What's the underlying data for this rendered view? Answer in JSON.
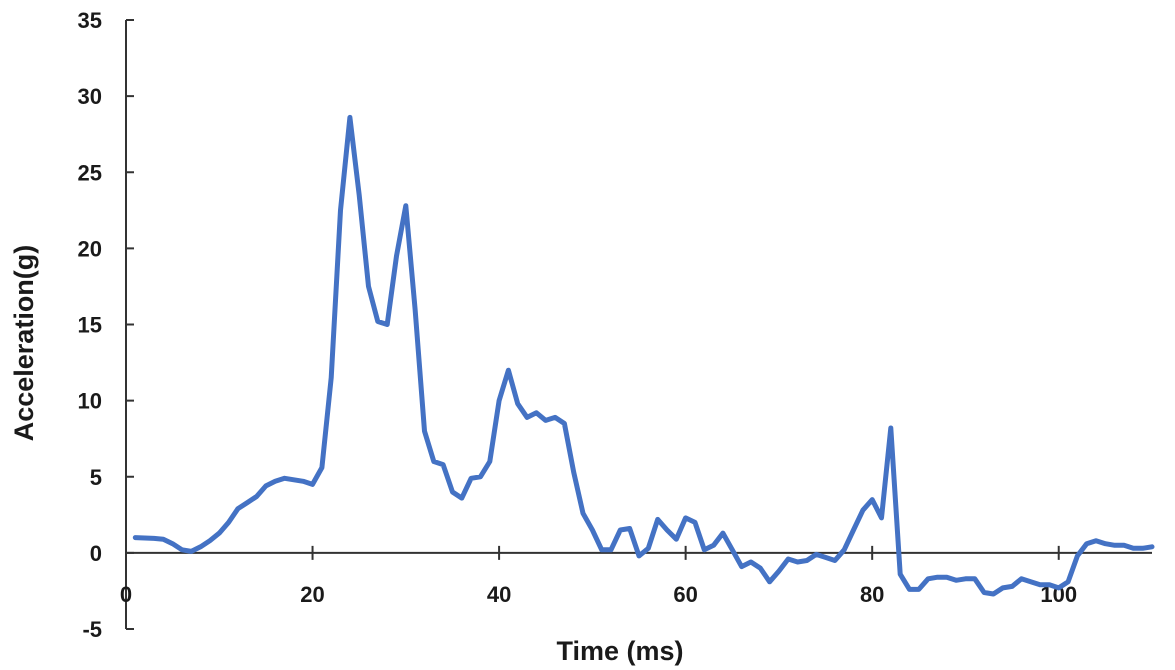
{
  "chart_data": {
    "type": "line",
    "title": "",
    "xlabel": "Time (ms)",
    "ylabel": "Acceleration(g)",
    "xlim": [
      0,
      110
    ],
    "ylim": [
      -5,
      35
    ],
    "x_ticks": [
      0,
      20,
      40,
      60,
      80,
      100
    ],
    "y_ticks": [
      -5,
      0,
      5,
      10,
      15,
      20,
      25,
      30,
      35
    ],
    "grid": false,
    "legend": "none",
    "line_color": "#4472C4",
    "series": [
      {
        "x": [
          1,
          3,
          4,
          5,
          6,
          7,
          8,
          9,
          10,
          11,
          12,
          13,
          14,
          15,
          16,
          17,
          18,
          19,
          20,
          21,
          22,
          23,
          24,
          25,
          26,
          27,
          28,
          29,
          30,
          31,
          32,
          33,
          34,
          35,
          36,
          37,
          38,
          39,
          40,
          41,
          42,
          43,
          44,
          45,
          46,
          47,
          48,
          49,
          50,
          51,
          52,
          53,
          54,
          55,
          56,
          57,
          58,
          59,
          60,
          61,
          62,
          63,
          64,
          65,
          66,
          67,
          68,
          69,
          70,
          71,
          72,
          73,
          74,
          75,
          76,
          77,
          78,
          79,
          80,
          81,
          82,
          83,
          84,
          85,
          86,
          87,
          88,
          89,
          90,
          91,
          92,
          93,
          94,
          95,
          96,
          97,
          98,
          99,
          100,
          101,
          102,
          103,
          104,
          105,
          106,
          107,
          108,
          109,
          110
        ],
        "values": [
          1.0,
          0.95,
          0.9,
          0.6,
          0.2,
          0.1,
          0.4,
          0.8,
          1.3,
          2.0,
          2.9,
          3.3,
          3.7,
          4.4,
          4.7,
          4.9,
          4.8,
          4.7,
          4.5,
          5.6,
          11.5,
          22.5,
          28.6,
          23.5,
          17.5,
          15.2,
          15.0,
          19.5,
          22.8,
          16.0,
          8.0,
          6.0,
          5.8,
          4.0,
          3.6,
          4.9,
          5.0,
          6.0,
          10.0,
          12.0,
          9.8,
          8.9,
          9.2,
          8.7,
          8.9,
          8.5,
          5.3,
          2.6,
          1.5,
          0.2,
          0.2,
          1.5,
          1.6,
          -0.2,
          0.3,
          2.2,
          1.5,
          0.9,
          2.3,
          2.0,
          0.2,
          0.5,
          1.3,
          0.2,
          -0.9,
          -0.6,
          -1.0,
          -1.9,
          -1.2,
          -0.4,
          -0.6,
          -0.5,
          -0.1,
          -0.3,
          -0.5,
          0.2,
          1.5,
          2.8,
          3.5,
          2.3,
          8.2,
          -1.4,
          -2.4,
          -2.4,
          -1.7,
          -1.6,
          -1.6,
          -1.8,
          -1.7,
          -1.7,
          -2.6,
          -2.7,
          -2.3,
          -2.2,
          -1.7,
          -1.9,
          -2.1,
          -2.1,
          -2.3,
          -1.9,
          -0.2,
          0.6,
          0.8,
          0.6,
          0.5,
          0.5,
          0.3,
          0.3,
          0.4
        ]
      }
    ]
  }
}
